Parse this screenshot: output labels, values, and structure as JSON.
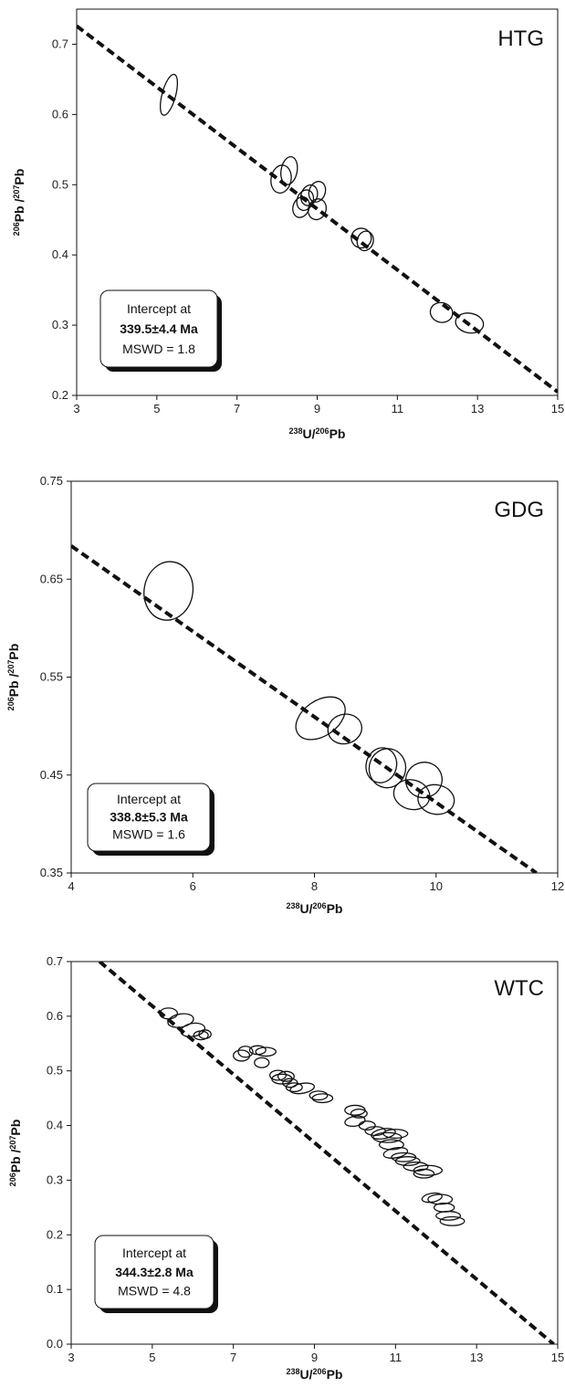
{
  "chart_data": [
    {
      "type": "scatter",
      "title": "HTG",
      "xlabel_main": "U/",
      "xlabel_sup1": "238",
      "xlabel_sup2": "206",
      "xlabel_end": "Pb",
      "ylabel_sup1": "206",
      "ylabel_mid": "Pb /",
      "ylabel_sup2": "207",
      "ylabel_end": "Pb",
      "xlim": [
        3,
        15
      ],
      "ylim": [
        0.2,
        0.75
      ],
      "xticks": [
        3,
        5,
        7,
        9,
        11,
        13,
        15
      ],
      "xtick_labels": [
        "3",
        "5",
        "7",
        "9",
        "11",
        "13",
        "15"
      ],
      "yticks": [
        0.2,
        0.3,
        0.4,
        0.5,
        0.6,
        0.7
      ],
      "ytick_labels": [
        "0.2",
        "0.3",
        "0.4",
        "0.5",
        "0.6",
        "0.7"
      ],
      "line": [
        [
          3,
          0.726
        ],
        [
          15,
          0.205
        ]
      ],
      "ellipses": [
        {
          "x": 5.3,
          "y": 0.628,
          "rx": 0.17,
          "ry": 0.03,
          "angle": 15
        },
        {
          "x": 8.1,
          "y": 0.508,
          "rx": 0.25,
          "ry": 0.02,
          "angle": 10
        },
        {
          "x": 8.3,
          "y": 0.52,
          "rx": 0.2,
          "ry": 0.02,
          "angle": 10
        },
        {
          "x": 8.6,
          "y": 0.468,
          "rx": 0.2,
          "ry": 0.015,
          "angle": 20
        },
        {
          "x": 8.7,
          "y": 0.478,
          "rx": 0.2,
          "ry": 0.015,
          "angle": 20
        },
        {
          "x": 8.8,
          "y": 0.485,
          "rx": 0.2,
          "ry": 0.015,
          "angle": 20
        },
        {
          "x": 9.0,
          "y": 0.49,
          "rx": 0.2,
          "ry": 0.015,
          "angle": 20
        },
        {
          "x": 9.0,
          "y": 0.465,
          "rx": 0.22,
          "ry": 0.015,
          "angle": 20
        },
        {
          "x": 10.1,
          "y": 0.424,
          "rx": 0.25,
          "ry": 0.014,
          "angle": 15
        },
        {
          "x": 10.2,
          "y": 0.42,
          "rx": 0.2,
          "ry": 0.014,
          "angle": 15
        },
        {
          "x": 12.1,
          "y": 0.318,
          "rx": 0.28,
          "ry": 0.014,
          "angle": 15
        },
        {
          "x": 12.8,
          "y": 0.303,
          "rx": 0.35,
          "ry": 0.014,
          "angle": 10
        }
      ],
      "box": {
        "line1": "Intercept at",
        "line2": "339.5±4.4 Ma",
        "line3": "MSWD = 1.8"
      }
    },
    {
      "type": "scatter",
      "title": "GDG",
      "xlabel_main": "U/",
      "xlabel_sup1": "238",
      "xlabel_sup2": "206",
      "xlabel_end": "Pb",
      "ylabel_sup1": "206",
      "ylabel_mid": "Pb /",
      "ylabel_sup2": "207",
      "ylabel_end": "Pb",
      "xlim": [
        4,
        12
      ],
      "ylim": [
        0.35,
        0.75
      ],
      "xticks": [
        4,
        6,
        8,
        10,
        12
      ],
      "xtick_labels": [
        "4",
        "6",
        "8",
        "10",
        "12"
      ],
      "yticks": [
        0.35,
        0.45,
        0.55,
        0.65,
        0.75
      ],
      "ytick_labels": [
        "0.35",
        "0.45",
        "0.55",
        "0.65",
        "0.75"
      ],
      "line": [
        [
          4,
          0.684
        ],
        [
          11.65,
          0.35
        ]
      ],
      "ellipses": [
        {
          "x": 5.6,
          "y": 0.638,
          "rx": 0.4,
          "ry": 0.03,
          "angle": 10
        },
        {
          "x": 8.1,
          "y": 0.508,
          "rx": 0.45,
          "ry": 0.018,
          "angle": -35
        },
        {
          "x": 8.5,
          "y": 0.497,
          "rx": 0.28,
          "ry": 0.015,
          "angle": -15
        },
        {
          "x": 9.1,
          "y": 0.46,
          "rx": 0.25,
          "ry": 0.018,
          "angle": 15
        },
        {
          "x": 9.2,
          "y": 0.457,
          "rx": 0.3,
          "ry": 0.02,
          "angle": 10
        },
        {
          "x": 9.6,
          "y": 0.43,
          "rx": 0.3,
          "ry": 0.015,
          "angle": 15
        },
        {
          "x": 9.8,
          "y": 0.445,
          "rx": 0.3,
          "ry": 0.018,
          "angle": -20
        },
        {
          "x": 10.0,
          "y": 0.425,
          "rx": 0.3,
          "ry": 0.015,
          "angle": 10
        }
      ],
      "box": {
        "line1": "Intercept at",
        "line2": "338.8±5.3 Ma",
        "line3": "MSWD = 1.6"
      }
    },
    {
      "type": "scatter",
      "title": "WTC",
      "xlabel_main": "U/",
      "xlabel_sup1": "238",
      "xlabel_sup2": "206",
      "xlabel_end": "Pb",
      "ylabel_sup1": "206",
      "ylabel_mid": "Pb /",
      "ylabel_sup2": "207",
      "ylabel_end": "Pb",
      "xlim": [
        3,
        15
      ],
      "ylim": [
        0.0,
        0.7
      ],
      "xticks": [
        3,
        5,
        7,
        9,
        11,
        13,
        15
      ],
      "xtick_labels": [
        "3",
        "5",
        "7",
        "9",
        "11",
        "13",
        "15"
      ],
      "yticks": [
        0.0,
        0.1,
        0.2,
        0.3,
        0.4,
        0.5,
        0.6,
        0.7
      ],
      "ytick_labels": [
        "0.0",
        "0.1",
        "0.2",
        "0.3",
        "0.4",
        "0.5",
        "0.6",
        "0.7"
      ],
      "line": [
        [
          3.7,
          0.7
        ],
        [
          14.9,
          0.0
        ]
      ],
      "ellipses": [
        {
          "x": 5.4,
          "y": 0.605,
          "rx": 0.22,
          "ry": 0.01,
          "angle": 0
        },
        {
          "x": 5.7,
          "y": 0.592,
          "rx": 0.32,
          "ry": 0.012,
          "angle": -10
        },
        {
          "x": 6.0,
          "y": 0.575,
          "rx": 0.3,
          "ry": 0.012,
          "angle": -10
        },
        {
          "x": 6.2,
          "y": 0.565,
          "rx": 0.18,
          "ry": 0.008,
          "angle": 0
        },
        {
          "x": 6.3,
          "y": 0.567,
          "rx": 0.15,
          "ry": 0.008,
          "angle": 0
        },
        {
          "x": 7.2,
          "y": 0.528,
          "rx": 0.2,
          "ry": 0.01,
          "angle": 0
        },
        {
          "x": 7.3,
          "y": 0.535,
          "rx": 0.18,
          "ry": 0.01,
          "angle": 0
        },
        {
          "x": 7.6,
          "y": 0.538,
          "rx": 0.2,
          "ry": 0.008,
          "angle": 0
        },
        {
          "x": 7.8,
          "y": 0.535,
          "rx": 0.25,
          "ry": 0.008,
          "angle": 0
        },
        {
          "x": 7.7,
          "y": 0.515,
          "rx": 0.18,
          "ry": 0.009,
          "angle": 0
        },
        {
          "x": 8.1,
          "y": 0.492,
          "rx": 0.2,
          "ry": 0.009,
          "angle": 0
        },
        {
          "x": 8.2,
          "y": 0.485,
          "rx": 0.25,
          "ry": 0.009,
          "angle": 0
        },
        {
          "x": 8.3,
          "y": 0.49,
          "rx": 0.2,
          "ry": 0.009,
          "angle": 0
        },
        {
          "x": 8.4,
          "y": 0.478,
          "rx": 0.18,
          "ry": 0.008,
          "angle": 0
        },
        {
          "x": 8.5,
          "y": 0.47,
          "rx": 0.2,
          "ry": 0.008,
          "angle": 0
        },
        {
          "x": 8.7,
          "y": 0.468,
          "rx": 0.3,
          "ry": 0.009,
          "angle": -10
        },
        {
          "x": 9.1,
          "y": 0.455,
          "rx": 0.22,
          "ry": 0.008,
          "angle": 0
        },
        {
          "x": 9.2,
          "y": 0.45,
          "rx": 0.25,
          "ry": 0.008,
          "angle": 0
        },
        {
          "x": 10.0,
          "y": 0.428,
          "rx": 0.25,
          "ry": 0.009,
          "angle": 0
        },
        {
          "x": 10.1,
          "y": 0.422,
          "rx": 0.2,
          "ry": 0.008,
          "angle": 0
        },
        {
          "x": 10.0,
          "y": 0.408,
          "rx": 0.25,
          "ry": 0.009,
          "angle": -10
        },
        {
          "x": 10.3,
          "y": 0.4,
          "rx": 0.2,
          "ry": 0.008,
          "angle": 0
        },
        {
          "x": 10.5,
          "y": 0.39,
          "rx": 0.25,
          "ry": 0.008,
          "angle": 0
        },
        {
          "x": 10.7,
          "y": 0.385,
          "rx": 0.3,
          "ry": 0.009,
          "angle": -10
        },
        {
          "x": 10.8,
          "y": 0.378,
          "rx": 0.35,
          "ry": 0.009,
          "angle": 0
        },
        {
          "x": 11.0,
          "y": 0.385,
          "rx": 0.3,
          "ry": 0.008,
          "angle": 0
        },
        {
          "x": 10.9,
          "y": 0.365,
          "rx": 0.3,
          "ry": 0.009,
          "angle": 0
        },
        {
          "x": 11.0,
          "y": 0.35,
          "rx": 0.3,
          "ry": 0.009,
          "angle": -10
        },
        {
          "x": 11.2,
          "y": 0.342,
          "rx": 0.3,
          "ry": 0.008,
          "angle": 0
        },
        {
          "x": 11.3,
          "y": 0.335,
          "rx": 0.3,
          "ry": 0.008,
          "angle": 0
        },
        {
          "x": 11.5,
          "y": 0.325,
          "rx": 0.3,
          "ry": 0.008,
          "angle": 0
        },
        {
          "x": 11.8,
          "y": 0.318,
          "rx": 0.35,
          "ry": 0.009,
          "angle": 0
        },
        {
          "x": 11.7,
          "y": 0.312,
          "rx": 0.25,
          "ry": 0.008,
          "angle": 0
        },
        {
          "x": 11.9,
          "y": 0.268,
          "rx": 0.25,
          "ry": 0.008,
          "angle": -10
        },
        {
          "x": 12.1,
          "y": 0.265,
          "rx": 0.3,
          "ry": 0.009,
          "angle": 0
        },
        {
          "x": 12.2,
          "y": 0.25,
          "rx": 0.25,
          "ry": 0.008,
          "angle": 0
        },
        {
          "x": 12.3,
          "y": 0.235,
          "rx": 0.3,
          "ry": 0.008,
          "angle": 0
        },
        {
          "x": 12.4,
          "y": 0.225,
          "rx": 0.3,
          "ry": 0.008,
          "angle": 0
        }
      ],
      "box": {
        "line1": "Intercept at",
        "line2": "344.3±2.8 Ma",
        "line3": "MSWD = 4.8"
      }
    }
  ]
}
